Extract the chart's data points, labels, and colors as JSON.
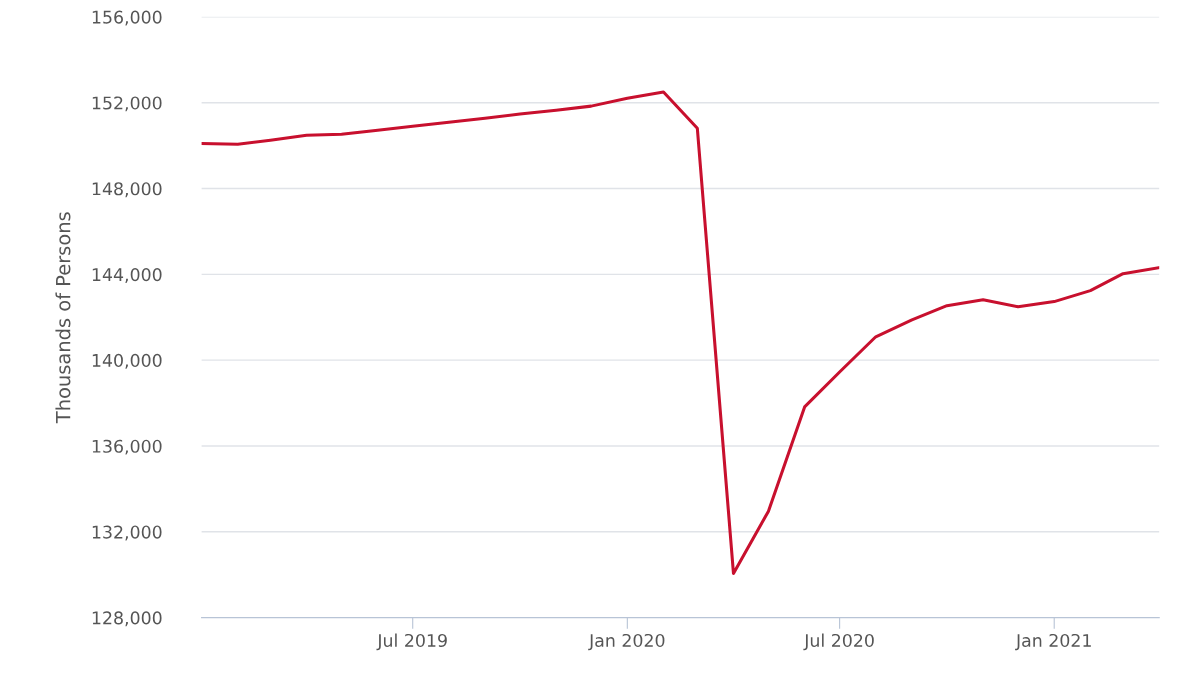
{
  "chart_data": {
    "type": "line",
    "ylabel": "Thousands of Persons",
    "x": [
      "2019-01",
      "2019-02",
      "2019-03",
      "2019-04",
      "2019-05",
      "2019-06",
      "2019-07",
      "2019-08",
      "2019-09",
      "2019-10",
      "2019-11",
      "2019-12",
      "2020-01",
      "2020-02",
      "2020-03",
      "2020-04",
      "2020-05",
      "2020-06",
      "2020-07",
      "2020-08",
      "2020-09",
      "2020-10",
      "2020-11",
      "2020-12",
      "2021-01",
      "2021-02",
      "2021-03",
      "2021-04"
    ],
    "series": [
      {
        "color": "#c8102e",
        "values": [
          150100,
          150060,
          150250,
          150480,
          150530,
          150720,
          150900,
          151090,
          151280,
          151470,
          151650,
          151840,
          152210,
          152500,
          150810,
          130060,
          132960,
          137820,
          139450,
          141090,
          141880,
          142540,
          142820,
          142490,
          142730,
          143240,
          144030,
          144310
        ]
      }
    ],
    "xlim": [
      "2019-01",
      "2021-04"
    ],
    "xticks": [
      {
        "value": "2019-07",
        "label": "Jul 2019"
      },
      {
        "value": "2020-01",
        "label": "Jan 2020"
      },
      {
        "value": "2020-07",
        "label": "Jul 2020"
      },
      {
        "value": "2021-01",
        "label": "Jan 2021"
      }
    ],
    "ylim": [
      128000,
      156000
    ],
    "yticks": [
      {
        "value": 128000,
        "label": "128,000"
      },
      {
        "value": 132000,
        "label": "132,000"
      },
      {
        "value": 136000,
        "label": "136,000"
      },
      {
        "value": 140000,
        "label": "140,000"
      },
      {
        "value": 144000,
        "label": "144,000"
      },
      {
        "value": 148000,
        "label": "148,000"
      },
      {
        "value": 152000,
        "label": "152,000"
      },
      {
        "value": 156000,
        "label": "156,000"
      }
    ],
    "grid": "y",
    "legend": false,
    "marker": "none",
    "line_style": "solid"
  }
}
